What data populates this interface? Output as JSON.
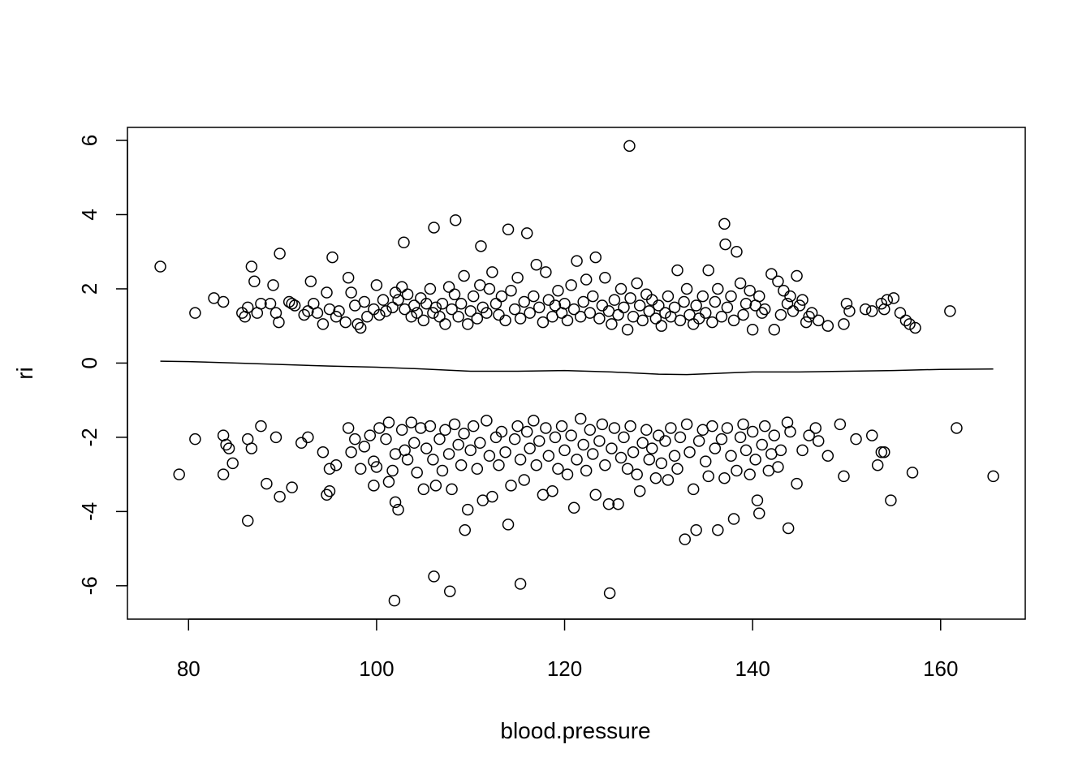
{
  "chart_data": {
    "type": "scatter",
    "title": "",
    "xlabel": "blood.pressure",
    "ylabel": "ri",
    "xlim": [
      73.5,
      169
    ],
    "ylim": [
      -6.9,
      6.35
    ],
    "x_ticks": [
      80,
      100,
      120,
      140,
      160
    ],
    "y_ticks": [
      -6,
      -4,
      -2,
      0,
      2,
      4,
      6
    ],
    "x_tick_labels": [
      "80",
      "100",
      "120",
      "140",
      "160"
    ],
    "y_tick_labels": [
      "-6",
      "-4",
      "-2",
      "0",
      "2",
      "4",
      "6"
    ],
    "grid": false,
    "legend": "none",
    "marker": "open-circle",
    "color": "#000000",
    "points": [
      [
        77,
        2.6
      ],
      [
        80.7,
        1.35
      ],
      [
        82.7,
        1.75
      ],
      [
        83.7,
        1.65
      ],
      [
        85.7,
        1.35
      ],
      [
        86,
        1.25
      ],
      [
        86.3,
        1.5
      ],
      [
        86.7,
        2.6
      ],
      [
        87,
        2.2
      ],
      [
        87.3,
        1.35
      ],
      [
        87.7,
        1.6
      ],
      [
        88.7,
        1.6
      ],
      [
        89,
        2.1
      ],
      [
        89.3,
        1.35
      ],
      [
        89.6,
        1.1
      ],
      [
        89.7,
        2.95
      ],
      [
        90.7,
        1.65
      ],
      [
        91,
        1.6
      ],
      [
        91.3,
        1.55
      ],
      [
        92.3,
        1.3
      ],
      [
        92.7,
        1.4
      ],
      [
        93,
        2.2
      ],
      [
        93.3,
        1.6
      ],
      [
        93.7,
        1.35
      ],
      [
        94.3,
        1.05
      ],
      [
        94.7,
        1.9
      ],
      [
        95,
        1.45
      ],
      [
        95.3,
        2.85
      ],
      [
        95.7,
        1.25
      ],
      [
        96,
        1.4
      ],
      [
        96.7,
        1.1
      ],
      [
        97,
        2.3
      ],
      [
        97.3,
        1.9
      ],
      [
        97.7,
        1.55
      ],
      [
        98,
        1.05
      ],
      [
        98.3,
        0.95
      ],
      [
        98.7,
        1.65
      ],
      [
        99,
        1.25
      ],
      [
        99.7,
        1.45
      ],
      [
        100,
        2.1
      ],
      [
        100.3,
        1.3
      ],
      [
        100.7,
        1.7
      ],
      [
        101,
        1.4
      ],
      [
        101.7,
        1.5
      ],
      [
        102,
        1.9
      ],
      [
        102.3,
        1.7
      ],
      [
        102.7,
        2.05
      ],
      [
        102.9,
        3.25
      ],
      [
        103,
        1.45
      ],
      [
        103.3,
        1.85
      ],
      [
        103.7,
        1.25
      ],
      [
        104,
        1.55
      ],
      [
        104.3,
        1.35
      ],
      [
        104.7,
        1.75
      ],
      [
        105,
        1.15
      ],
      [
        105.3,
        1.6
      ],
      [
        105.7,
        2.0
      ],
      [
        106,
        1.35
      ],
      [
        106.1,
        3.65
      ],
      [
        106.3,
        1.5
      ],
      [
        106.7,
        1.25
      ],
      [
        107,
        1.6
      ],
      [
        107.3,
        1.05
      ],
      [
        107.7,
        2.05
      ],
      [
        108,
        1.45
      ],
      [
        108.3,
        1.85
      ],
      [
        108.4,
        3.85
      ],
      [
        108.7,
        1.25
      ],
      [
        109,
        1.6
      ],
      [
        109.3,
        2.35
      ],
      [
        109.7,
        1.05
      ],
      [
        110,
        1.4
      ],
      [
        110.3,
        1.8
      ],
      [
        110.7,
        1.2
      ],
      [
        111,
        2.1
      ],
      [
        111.1,
        3.15
      ],
      [
        111.3,
        1.5
      ],
      [
        111.7,
        1.35
      ],
      [
        112,
        2.0
      ],
      [
        112.3,
        2.45
      ],
      [
        112.7,
        1.6
      ],
      [
        113,
        1.3
      ],
      [
        113.3,
        1.8
      ],
      [
        113.7,
        1.15
      ],
      [
        114,
        3.6
      ],
      [
        114.3,
        1.95
      ],
      [
        114.7,
        1.45
      ],
      [
        115,
        2.3
      ],
      [
        115.3,
        1.2
      ],
      [
        115.7,
        1.65
      ],
      [
        116,
        3.5
      ],
      [
        116.3,
        1.35
      ],
      [
        116.7,
        1.8
      ],
      [
        117,
        2.65
      ],
      [
        117.3,
        1.5
      ],
      [
        117.7,
        1.1
      ],
      [
        118,
        2.45
      ],
      [
        118.3,
        1.7
      ],
      [
        118.7,
        1.25
      ],
      [
        119,
        1.55
      ],
      [
        119.3,
        1.95
      ],
      [
        119.7,
        1.35
      ],
      [
        120,
        1.6
      ],
      [
        120.3,
        1.15
      ],
      [
        120.7,
        2.1
      ],
      [
        121,
        1.45
      ],
      [
        121.3,
        2.75
      ],
      [
        121.7,
        1.25
      ],
      [
        122,
        1.65
      ],
      [
        122.3,
        2.25
      ],
      [
        122.7,
        1.35
      ],
      [
        123,
        1.8
      ],
      [
        123.3,
        2.85
      ],
      [
        123.7,
        1.2
      ],
      [
        124,
        1.55
      ],
      [
        124.3,
        2.3
      ],
      [
        124.7,
        1.4
      ],
      [
        125,
        1.05
      ],
      [
        125.3,
        1.7
      ],
      [
        125.7,
        1.3
      ],
      [
        126,
        2.0
      ],
      [
        126.3,
        1.5
      ],
      [
        126.7,
        0.9
      ],
      [
        126.9,
        5.85
      ],
      [
        127,
        1.75
      ],
      [
        127.3,
        1.25
      ],
      [
        127.7,
        2.15
      ],
      [
        128,
        1.55
      ],
      [
        128.3,
        1.15
      ],
      [
        128.7,
        1.85
      ],
      [
        129,
        1.4
      ],
      [
        129.3,
        1.7
      ],
      [
        129.7,
        1.2
      ],
      [
        130,
        1.55
      ],
      [
        130.3,
        1.0
      ],
      [
        130.7,
        1.35
      ],
      [
        131,
        1.8
      ],
      [
        131.3,
        1.25
      ],
      [
        131.7,
        1.5
      ],
      [
        132,
        2.5
      ],
      [
        132.3,
        1.15
      ],
      [
        132.7,
        1.65
      ],
      [
        133,
        2.0
      ],
      [
        133.3,
        1.3
      ],
      [
        133.7,
        1.05
      ],
      [
        134,
        1.55
      ],
      [
        134.3,
        1.2
      ],
      [
        134.7,
        1.8
      ],
      [
        135,
        1.35
      ],
      [
        135.3,
        2.5
      ],
      [
        135.7,
        1.1
      ],
      [
        136,
        1.65
      ],
      [
        136.3,
        2.0
      ],
      [
        136.7,
        1.25
      ],
      [
        137,
        3.75
      ],
      [
        137.1,
        3.2
      ],
      [
        137.3,
        1.5
      ],
      [
        137.7,
        1.8
      ],
      [
        138,
        1.15
      ],
      [
        138.3,
        3.0
      ],
      [
        138.7,
        2.15
      ],
      [
        139,
        1.3
      ],
      [
        139.3,
        1.6
      ],
      [
        139.7,
        1.95
      ],
      [
        140,
        0.9
      ],
      [
        140.3,
        1.55
      ],
      [
        140.7,
        1.8
      ],
      [
        141,
        1.35
      ],
      [
        141.3,
        1.45
      ],
      [
        142,
        2.4
      ],
      [
        142.3,
        0.9
      ],
      [
        142.7,
        2.2
      ],
      [
        143,
        1.3
      ],
      [
        143.3,
        1.95
      ],
      [
        143.7,
        1.6
      ],
      [
        144,
        1.8
      ],
      [
        144.3,
        1.4
      ],
      [
        144.7,
        2.35
      ],
      [
        145,
        1.55
      ],
      [
        145.3,
        1.7
      ],
      [
        145.7,
        1.1
      ],
      [
        146,
        1.25
      ],
      [
        146.3,
        1.35
      ],
      [
        147,
        1.15
      ],
      [
        148,
        1.0
      ],
      [
        149.7,
        1.05
      ],
      [
        150,
        1.6
      ],
      [
        150.3,
        1.4
      ],
      [
        152,
        1.45
      ],
      [
        152.7,
        1.4
      ],
      [
        153.7,
        1.6
      ],
      [
        154,
        1.45
      ],
      [
        154.3,
        1.7
      ],
      [
        155,
        1.75
      ],
      [
        155.7,
        1.35
      ],
      [
        156.3,
        1.15
      ],
      [
        156.7,
        1.05
      ],
      [
        157.3,
        0.95
      ],
      [
        161,
        1.4
      ],
      [
        80.7,
        -2.05
      ],
      [
        79,
        -3.0
      ],
      [
        83.7,
        -1.95
      ],
      [
        84,
        -2.2
      ],
      [
        83.7,
        -3.0
      ],
      [
        84.3,
        -2.3
      ],
      [
        84.7,
        -2.7
      ],
      [
        86.3,
        -2.05
      ],
      [
        86.7,
        -2.3
      ],
      [
        86.3,
        -4.25
      ],
      [
        87.7,
        -1.7
      ],
      [
        88.3,
        -3.25
      ],
      [
        89.3,
        -2.0
      ],
      [
        89.7,
        -3.6
      ],
      [
        91,
        -3.35
      ],
      [
        92,
        -2.15
      ],
      [
        92.7,
        -2.0
      ],
      [
        94.3,
        -2.4
      ],
      [
        94.7,
        -3.55
      ],
      [
        95,
        -2.85
      ],
      [
        95,
        -3.45
      ],
      [
        95.7,
        -2.75
      ],
      [
        97,
        -1.75
      ],
      [
        97.3,
        -2.4
      ],
      [
        97.7,
        -2.05
      ],
      [
        98.3,
        -2.85
      ],
      [
        98.7,
        -2.25
      ],
      [
        99.3,
        -1.95
      ],
      [
        99.7,
        -2.65
      ],
      [
        99.7,
        -3.3
      ],
      [
        100,
        -2.8
      ],
      [
        100.3,
        -1.75
      ],
      [
        101,
        -2.05
      ],
      [
        101.3,
        -1.6
      ],
      [
        101.3,
        -3.2
      ],
      [
        101.7,
        -2.9
      ],
      [
        101.9,
        -6.4
      ],
      [
        102,
        -2.45
      ],
      [
        102,
        -3.75
      ],
      [
        102.3,
        -3.95
      ],
      [
        102.7,
        -1.8
      ],
      [
        103,
        -2.35
      ],
      [
        103.3,
        -2.6
      ],
      [
        103.7,
        -1.6
      ],
      [
        104,
        -2.15
      ],
      [
        104.3,
        -2.95
      ],
      [
        104.7,
        -1.75
      ],
      [
        105,
        -3.4
      ],
      [
        105.3,
        -2.3
      ],
      [
        105.7,
        -1.7
      ],
      [
        106,
        -2.6
      ],
      [
        106.1,
        -5.75
      ],
      [
        106.3,
        -3.3
      ],
      [
        106.7,
        -2.05
      ],
      [
        107,
        -2.9
      ],
      [
        107.3,
        -1.8
      ],
      [
        107.7,
        -2.45
      ],
      [
        107.8,
        -6.15
      ],
      [
        108,
        -3.4
      ],
      [
        108.3,
        -1.65
      ],
      [
        108.7,
        -2.2
      ],
      [
        109,
        -2.75
      ],
      [
        109.3,
        -1.9
      ],
      [
        109.4,
        -4.5
      ],
      [
        109.7,
        -3.95
      ],
      [
        110,
        -2.35
      ],
      [
        110.3,
        -1.7
      ],
      [
        110.7,
        -2.85
      ],
      [
        111,
        -2.15
      ],
      [
        111.3,
        -3.7
      ],
      [
        111.7,
        -1.55
      ],
      [
        112,
        -2.5
      ],
      [
        112.3,
        -3.6
      ],
      [
        112.7,
        -2.0
      ],
      [
        113,
        -2.75
      ],
      [
        113.3,
        -1.85
      ],
      [
        113.7,
        -2.4
      ],
      [
        114,
        -4.35
      ],
      [
        114.3,
        -3.3
      ],
      [
        114.7,
        -2.05
      ],
      [
        115,
        -1.7
      ],
      [
        115.3,
        -2.6
      ],
      [
        115.3,
        -5.95
      ],
      [
        115.7,
        -3.15
      ],
      [
        116,
        -1.85
      ],
      [
        116.3,
        -2.3
      ],
      [
        116.7,
        -1.55
      ],
      [
        117,
        -2.75
      ],
      [
        117.3,
        -2.1
      ],
      [
        117.7,
        -3.55
      ],
      [
        118,
        -1.75
      ],
      [
        118.3,
        -2.5
      ],
      [
        118.7,
        -3.45
      ],
      [
        119,
        -2.0
      ],
      [
        119.3,
        -2.85
      ],
      [
        119.7,
        -1.7
      ],
      [
        120,
        -2.35
      ],
      [
        120.3,
        -3.0
      ],
      [
        120.7,
        -1.95
      ],
      [
        121,
        -3.9
      ],
      [
        121.3,
        -2.6
      ],
      [
        121.7,
        -1.5
      ],
      [
        122,
        -2.2
      ],
      [
        122.3,
        -2.9
      ],
      [
        122.7,
        -1.8
      ],
      [
        123,
        -2.45
      ],
      [
        123.3,
        -3.55
      ],
      [
        123.7,
        -2.1
      ],
      [
        124,
        -1.65
      ],
      [
        124.3,
        -2.75
      ],
      [
        124.7,
        -3.8
      ],
      [
        124.8,
        -6.2
      ],
      [
        125,
        -2.3
      ],
      [
        125.3,
        -1.75
      ],
      [
        125.7,
        -3.8
      ],
      [
        126,
        -2.55
      ],
      [
        126.3,
        -2.0
      ],
      [
        126.7,
        -2.85
      ],
      [
        127,
        -1.7
      ],
      [
        127.3,
        -2.4
      ],
      [
        127.7,
        -3.0
      ],
      [
        128,
        -3.45
      ],
      [
        128.3,
        -2.15
      ],
      [
        128.7,
        -1.8
      ],
      [
        129,
        -2.6
      ],
      [
        129.3,
        -2.3
      ],
      [
        129.7,
        -3.1
      ],
      [
        130,
        -1.95
      ],
      [
        130.3,
        -2.7
      ],
      [
        130.7,
        -2.1
      ],
      [
        131,
        -3.15
      ],
      [
        131.3,
        -1.75
      ],
      [
        131.7,
        -2.5
      ],
      [
        132,
        -2.85
      ],
      [
        132.3,
        -2.0
      ],
      [
        132.8,
        -4.75
      ],
      [
        133,
        -1.65
      ],
      [
        133.3,
        -2.4
      ],
      [
        133.7,
        -3.4
      ],
      [
        134,
        -4.5
      ],
      [
        134.3,
        -2.1
      ],
      [
        134.7,
        -1.8
      ],
      [
        135,
        -2.65
      ],
      [
        135.3,
        -3.05
      ],
      [
        135.7,
        -1.7
      ],
      [
        136,
        -2.3
      ],
      [
        136.3,
        -4.5
      ],
      [
        136.7,
        -2.05
      ],
      [
        137,
        -3.1
      ],
      [
        137.3,
        -1.75
      ],
      [
        137.7,
        -2.5
      ],
      [
        138,
        -4.2
      ],
      [
        138.3,
        -2.9
      ],
      [
        138.7,
        -2.0
      ],
      [
        139,
        -1.65
      ],
      [
        139.3,
        -2.35
      ],
      [
        139.7,
        -3.0
      ],
      [
        140,
        -1.85
      ],
      [
        140.3,
        -2.6
      ],
      [
        140.5,
        -3.7
      ],
      [
        140.7,
        -4.05
      ],
      [
        141,
        -2.2
      ],
      [
        141.3,
        -1.7
      ],
      [
        141.7,
        -2.9
      ],
      [
        142,
        -2.45
      ],
      [
        142.3,
        -1.95
      ],
      [
        142.7,
        -2.8
      ],
      [
        143,
        -2.35
      ],
      [
        143.7,
        -1.6
      ],
      [
        143.8,
        -4.45
      ],
      [
        144,
        -1.85
      ],
      [
        144.7,
        -3.25
      ],
      [
        145.3,
        -2.35
      ],
      [
        146,
        -1.95
      ],
      [
        146.7,
        -1.75
      ],
      [
        147,
        -2.1
      ],
      [
        148,
        -2.5
      ],
      [
        149.3,
        -1.65
      ],
      [
        149.7,
        -3.05
      ],
      [
        151,
        -2.05
      ],
      [
        152.7,
        -1.95
      ],
      [
        153.3,
        -2.75
      ],
      [
        153.7,
        -2.4
      ],
      [
        154,
        -2.4
      ],
      [
        154.7,
        -3.7
      ],
      [
        157,
        -2.95
      ],
      [
        161.7,
        -1.75
      ],
      [
        165.6,
        -3.05
      ]
    ],
    "smooth_line": [
      [
        77,
        0.05
      ],
      [
        80,
        0.04
      ],
      [
        85,
        0.0
      ],
      [
        90,
        -0.04
      ],
      [
        95,
        -0.08
      ],
      [
        100,
        -0.11
      ],
      [
        105,
        -0.16
      ],
      [
        110,
        -0.22
      ],
      [
        115,
        -0.22
      ],
      [
        120,
        -0.2
      ],
      [
        125,
        -0.24
      ],
      [
        130,
        -0.3
      ],
      [
        133,
        -0.31
      ],
      [
        136,
        -0.28
      ],
      [
        140,
        -0.24
      ],
      [
        145,
        -0.24
      ],
      [
        150,
        -0.22
      ],
      [
        155,
        -0.2
      ],
      [
        160,
        -0.17
      ],
      [
        165.6,
        -0.16
      ]
    ]
  }
}
